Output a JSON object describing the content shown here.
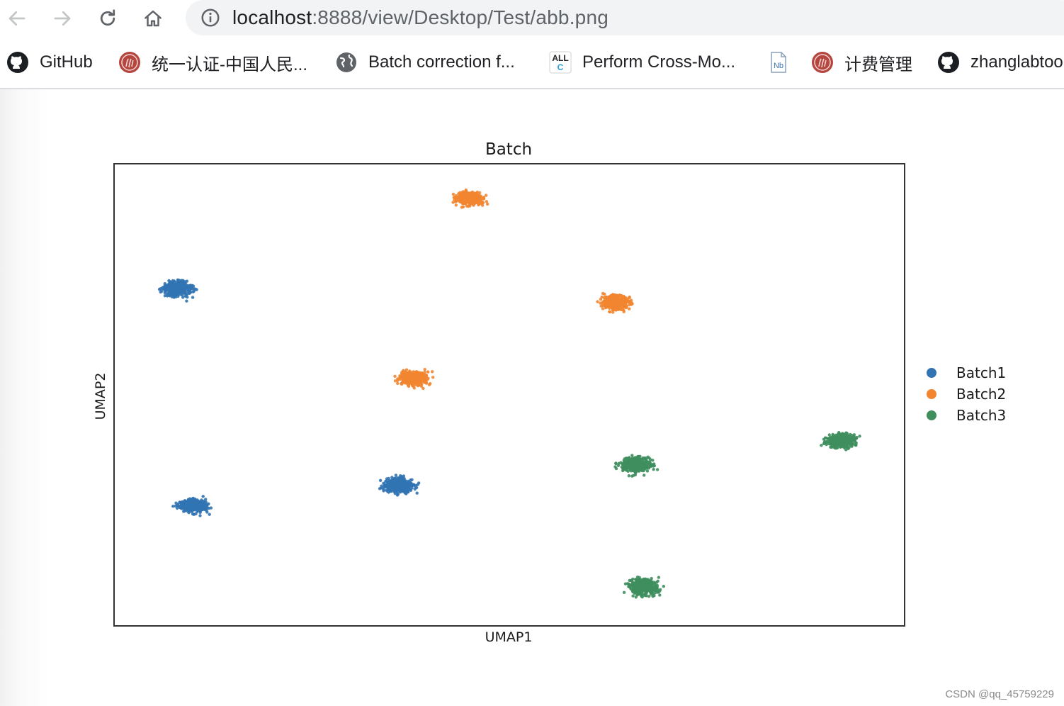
{
  "toolbar": {
    "url_host": "localhost",
    "url_path": ":8888/view/Desktop/Test/abb.png"
  },
  "bookmarks": [
    {
      "label": "GitHub",
      "icon": "github-icon"
    },
    {
      "label": "统一认证-中国人民...",
      "icon": "university-seal-icon"
    },
    {
      "label": "Batch correction f...",
      "icon": "globe-icon"
    },
    {
      "label": "Perform Cross-Mo...",
      "icon": "allc-icon"
    },
    {
      "label": "",
      "icon": "notebook-file-icon"
    },
    {
      "label": "计费管理",
      "icon": "university-seal-icon"
    },
    {
      "label": "zhanglabtoo",
      "icon": "github-icon"
    }
  ],
  "chart_data": {
    "type": "scatter",
    "title": "Batch",
    "xlabel": "UMAP1",
    "ylabel": "UMAP2",
    "grid": false,
    "legend_position": "right",
    "xlim": [
      0,
      100
    ],
    "ylim": [
      0,
      100
    ],
    "series": [
      {
        "name": "Batch1",
        "color": "#3274b3",
        "clusters": [
          {
            "x": 8,
            "y": 73,
            "spread_x": 3.2,
            "spread_y": 2.8
          },
          {
            "x": 10,
            "y": 26,
            "spread_x": 3.2,
            "spread_y": 2.6
          },
          {
            "x": 36,
            "y": 30.5,
            "spread_x": 3.2,
            "spread_y": 2.8
          }
        ]
      },
      {
        "name": "Batch2",
        "color": "#f28530",
        "clusters": [
          {
            "x": 45,
            "y": 92.5,
            "spread_x": 3.0,
            "spread_y": 2.5
          },
          {
            "x": 63.5,
            "y": 70,
            "spread_x": 3.2,
            "spread_y": 2.8
          },
          {
            "x": 38,
            "y": 53.5,
            "spread_x": 3.2,
            "spread_y": 2.8
          }
        ]
      },
      {
        "name": "Batch3",
        "color": "#3f8e5e",
        "clusters": [
          {
            "x": 66,
            "y": 35,
            "spread_x": 3.4,
            "spread_y": 2.9
          },
          {
            "x": 92,
            "y": 40,
            "spread_x": 3.3,
            "spread_y": 2.6
          },
          {
            "x": 67,
            "y": 8.5,
            "spread_x": 3.4,
            "spread_y": 3.0
          }
        ]
      }
    ]
  },
  "watermark": "CSDN @qq_45759229"
}
